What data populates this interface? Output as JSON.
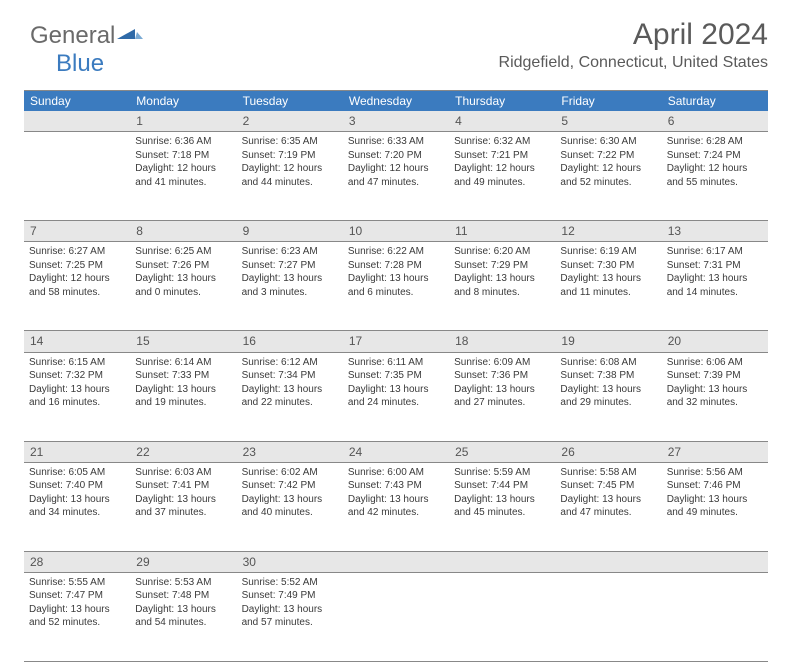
{
  "logo": {
    "text1": "General",
    "text2": "Blue"
  },
  "title": "April 2024",
  "location": "Ridgefield, Connecticut, United States",
  "header_bg": "#3b7bbf",
  "daynum_bg": "#e7e7e7",
  "dow": [
    "Sunday",
    "Monday",
    "Tuesday",
    "Wednesday",
    "Thursday",
    "Friday",
    "Saturday"
  ],
  "weeks": [
    {
      "nums": [
        "",
        "1",
        "2",
        "3",
        "4",
        "5",
        "6"
      ],
      "cells": [
        [],
        [
          "Sunrise: 6:36 AM",
          "Sunset: 7:18 PM",
          "Daylight: 12 hours and 41 minutes."
        ],
        [
          "Sunrise: 6:35 AM",
          "Sunset: 7:19 PM",
          "Daylight: 12 hours and 44 minutes."
        ],
        [
          "Sunrise: 6:33 AM",
          "Sunset: 7:20 PM",
          "Daylight: 12 hours and 47 minutes."
        ],
        [
          "Sunrise: 6:32 AM",
          "Sunset: 7:21 PM",
          "Daylight: 12 hours and 49 minutes."
        ],
        [
          "Sunrise: 6:30 AM",
          "Sunset: 7:22 PM",
          "Daylight: 12 hours and 52 minutes."
        ],
        [
          "Sunrise: 6:28 AM",
          "Sunset: 7:24 PM",
          "Daylight: 12 hours and 55 minutes."
        ]
      ]
    },
    {
      "nums": [
        "7",
        "8",
        "9",
        "10",
        "11",
        "12",
        "13"
      ],
      "cells": [
        [
          "Sunrise: 6:27 AM",
          "Sunset: 7:25 PM",
          "Daylight: 12 hours and 58 minutes."
        ],
        [
          "Sunrise: 6:25 AM",
          "Sunset: 7:26 PM",
          "Daylight: 13 hours and 0 minutes."
        ],
        [
          "Sunrise: 6:23 AM",
          "Sunset: 7:27 PM",
          "Daylight: 13 hours and 3 minutes."
        ],
        [
          "Sunrise: 6:22 AM",
          "Sunset: 7:28 PM",
          "Daylight: 13 hours and 6 minutes."
        ],
        [
          "Sunrise: 6:20 AM",
          "Sunset: 7:29 PM",
          "Daylight: 13 hours and 8 minutes."
        ],
        [
          "Sunrise: 6:19 AM",
          "Sunset: 7:30 PM",
          "Daylight: 13 hours and 11 minutes."
        ],
        [
          "Sunrise: 6:17 AM",
          "Sunset: 7:31 PM",
          "Daylight: 13 hours and 14 minutes."
        ]
      ]
    },
    {
      "nums": [
        "14",
        "15",
        "16",
        "17",
        "18",
        "19",
        "20"
      ],
      "cells": [
        [
          "Sunrise: 6:15 AM",
          "Sunset: 7:32 PM",
          "Daylight: 13 hours and 16 minutes."
        ],
        [
          "Sunrise: 6:14 AM",
          "Sunset: 7:33 PM",
          "Daylight: 13 hours and 19 minutes."
        ],
        [
          "Sunrise: 6:12 AM",
          "Sunset: 7:34 PM",
          "Daylight: 13 hours and 22 minutes."
        ],
        [
          "Sunrise: 6:11 AM",
          "Sunset: 7:35 PM",
          "Daylight: 13 hours and 24 minutes."
        ],
        [
          "Sunrise: 6:09 AM",
          "Sunset: 7:36 PM",
          "Daylight: 13 hours and 27 minutes."
        ],
        [
          "Sunrise: 6:08 AM",
          "Sunset: 7:38 PM",
          "Daylight: 13 hours and 29 minutes."
        ],
        [
          "Sunrise: 6:06 AM",
          "Sunset: 7:39 PM",
          "Daylight: 13 hours and 32 minutes."
        ]
      ]
    },
    {
      "nums": [
        "21",
        "22",
        "23",
        "24",
        "25",
        "26",
        "27"
      ],
      "cells": [
        [
          "Sunrise: 6:05 AM",
          "Sunset: 7:40 PM",
          "Daylight: 13 hours and 34 minutes."
        ],
        [
          "Sunrise: 6:03 AM",
          "Sunset: 7:41 PM",
          "Daylight: 13 hours and 37 minutes."
        ],
        [
          "Sunrise: 6:02 AM",
          "Sunset: 7:42 PM",
          "Daylight: 13 hours and 40 minutes."
        ],
        [
          "Sunrise: 6:00 AM",
          "Sunset: 7:43 PM",
          "Daylight: 13 hours and 42 minutes."
        ],
        [
          "Sunrise: 5:59 AM",
          "Sunset: 7:44 PM",
          "Daylight: 13 hours and 45 minutes."
        ],
        [
          "Sunrise: 5:58 AM",
          "Sunset: 7:45 PM",
          "Daylight: 13 hours and 47 minutes."
        ],
        [
          "Sunrise: 5:56 AM",
          "Sunset: 7:46 PM",
          "Daylight: 13 hours and 49 minutes."
        ]
      ]
    },
    {
      "nums": [
        "28",
        "29",
        "30",
        "",
        "",
        "",
        ""
      ],
      "cells": [
        [
          "Sunrise: 5:55 AM",
          "Sunset: 7:47 PM",
          "Daylight: 13 hours and 52 minutes."
        ],
        [
          "Sunrise: 5:53 AM",
          "Sunset: 7:48 PM",
          "Daylight: 13 hours and 54 minutes."
        ],
        [
          "Sunrise: 5:52 AM",
          "Sunset: 7:49 PM",
          "Daylight: 13 hours and 57 minutes."
        ],
        [],
        [],
        [],
        []
      ]
    }
  ]
}
